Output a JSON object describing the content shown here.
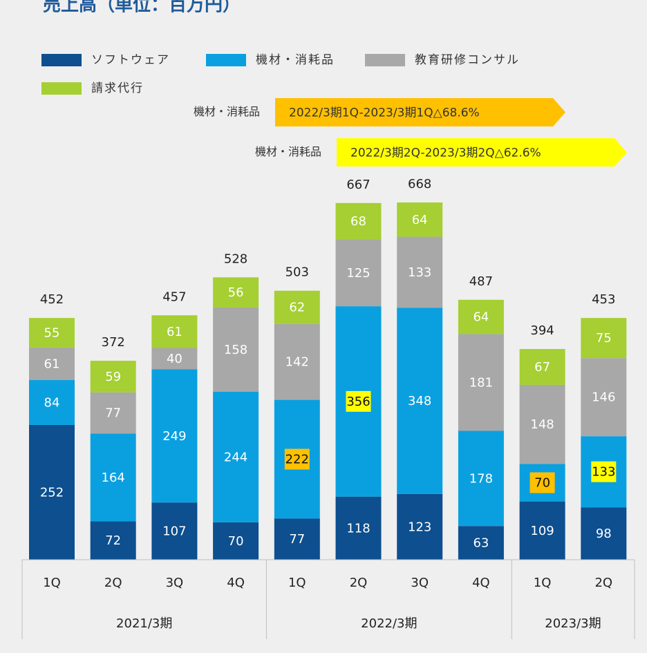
{
  "chart_data": {
    "type": "stacked_bar",
    "title": "売上高（単位：百万円）",
    "groups": [
      {
        "name": "2021/3期",
        "categories": [
          "1Q",
          "2Q",
          "3Q",
          "4Q"
        ]
      },
      {
        "name": "2022/3期",
        "categories": [
          "1Q",
          "2Q",
          "3Q",
          "4Q"
        ]
      },
      {
        "name": "2023/3期",
        "categories": [
          "1Q",
          "2Q"
        ]
      }
    ],
    "series": [
      {
        "name": "ソフトウェア",
        "color": "#0d4f8f",
        "values": [
          252,
          72,
          107,
          70,
          77,
          118,
          123,
          63,
          109,
          98
        ]
      },
      {
        "name": "機材・消耗品",
        "color": "#0aa0e0",
        "values": [
          84,
          164,
          249,
          244,
          222,
          356,
          348,
          178,
          70,
          133
        ],
        "label_highlights": [
          null,
          null,
          null,
          null,
          "#ffc000",
          "#ffff00",
          null,
          null,
          "#ffc000",
          "#ffff00"
        ]
      },
      {
        "name": "教育研修コンサル",
        "color": "#a8a8a8",
        "values": [
          61,
          77,
          40,
          158,
          142,
          125,
          133,
          181,
          148,
          146
        ]
      },
      {
        "name": "請求代行",
        "color": "#a5cf32",
        "values": [
          55,
          59,
          61,
          56,
          62,
          68,
          64,
          64,
          67,
          75
        ]
      }
    ],
    "totals": [
      452,
      372,
      457,
      528,
      503,
      667,
      668,
      487,
      394,
      453
    ],
    "annotations": [
      {
        "label": "機材・消耗品",
        "text": "2022/3期1Q-2023/3期1Q△68.6%",
        "color": "#ffc000"
      },
      {
        "label": "機材・消耗品",
        "text": "2022/3期2Q-2023/3期2Q△62.6%",
        "color": "#ffff00"
      }
    ]
  }
}
